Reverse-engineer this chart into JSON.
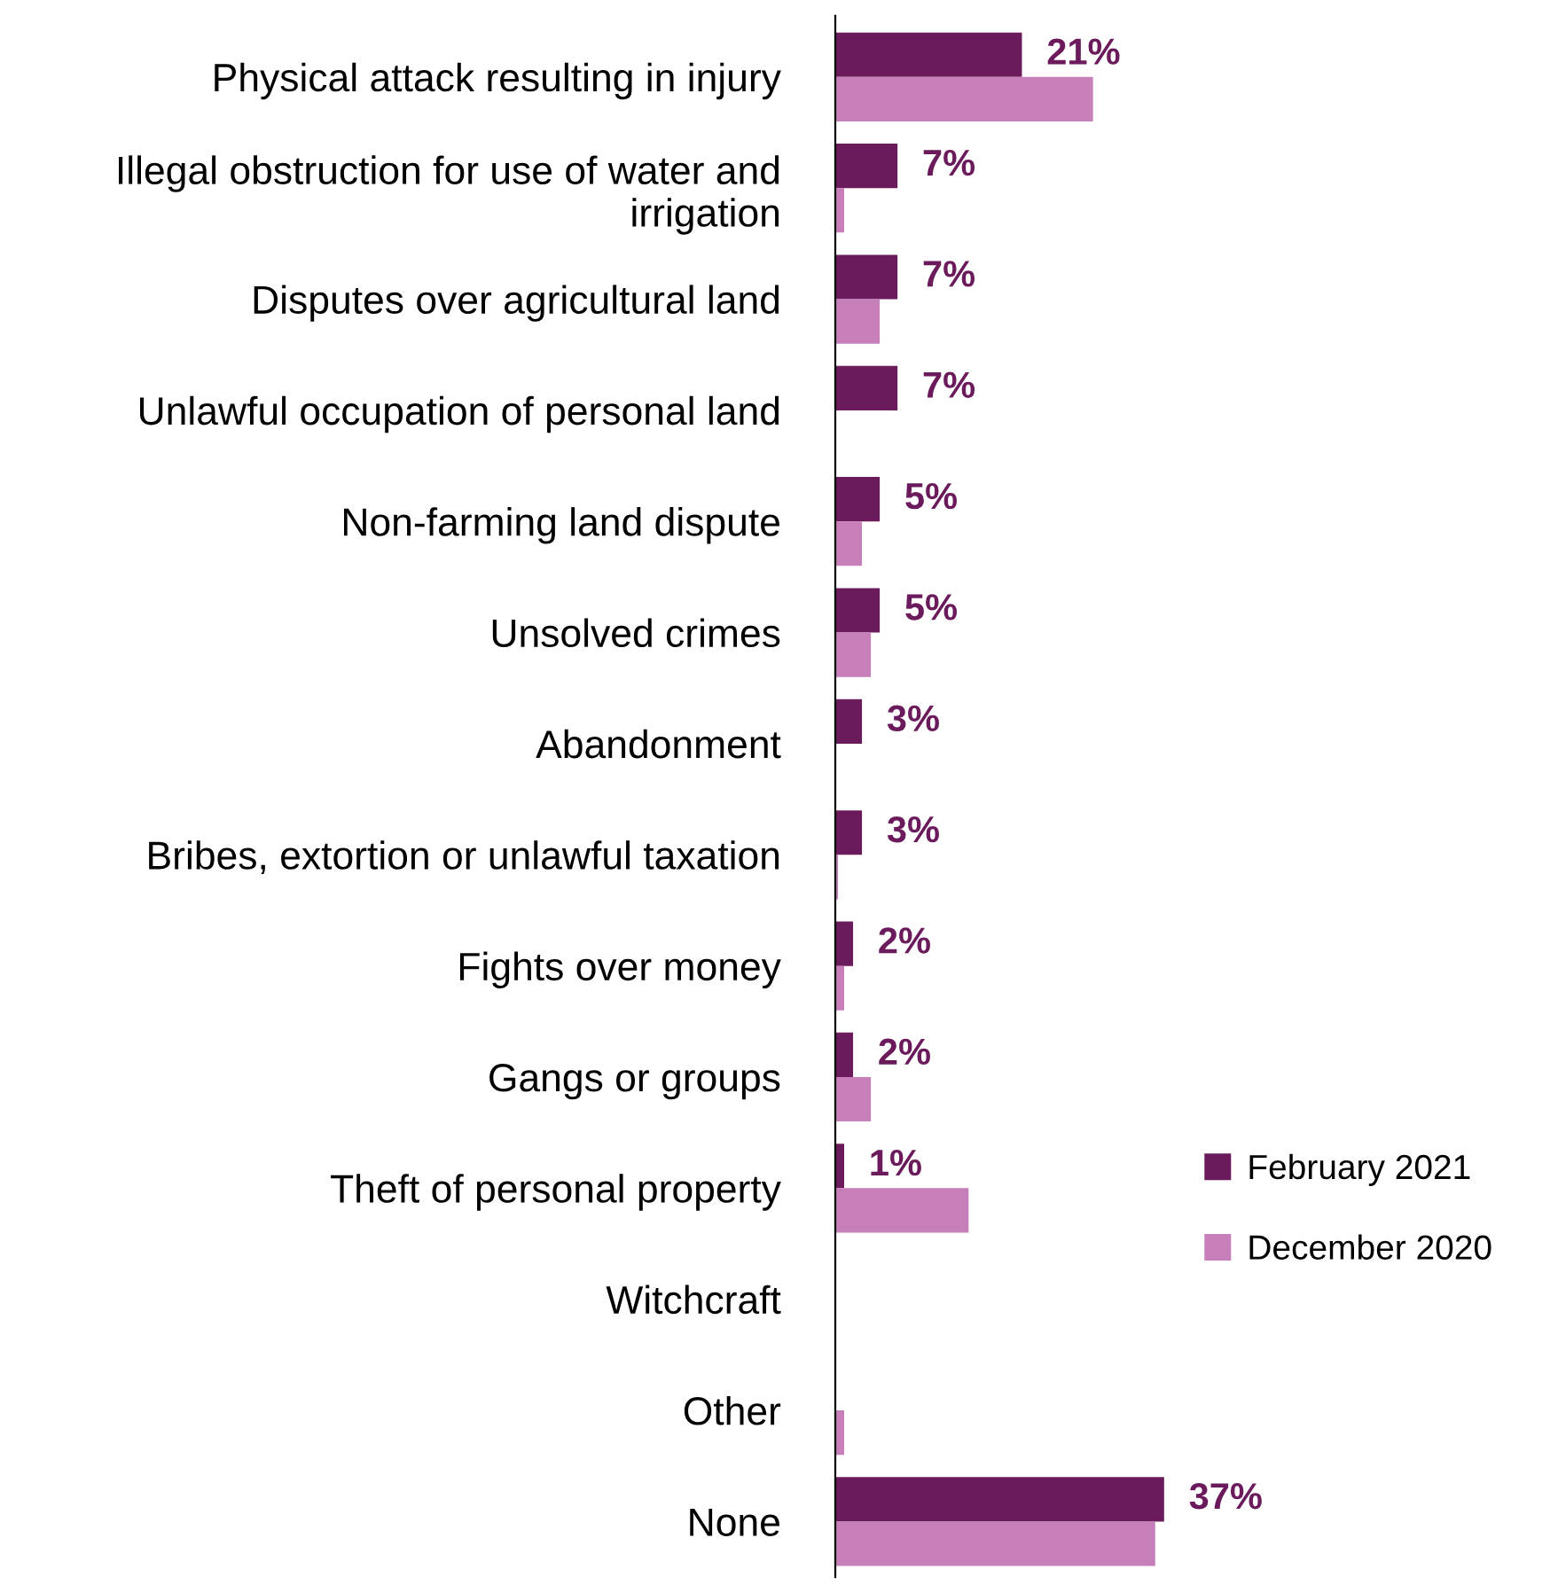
{
  "chart_data": {
    "type": "bar",
    "orientation": "horizontal",
    "legend": "right",
    "categories": [
      "Physical attack resulting in injury",
      "Illegal obstruction for use of water and\nirrigation",
      "Disputes over agricultural land",
      "Unlawful occupation of personal land",
      "Non-farming land dispute",
      "Unsolved crimes",
      "Abandonment",
      "Bribes, extortion or unlawful taxation",
      "Fights over money",
      "Gangs or groups",
      "Theft of personal property",
      "Witchcraft",
      "Other",
      "None"
    ],
    "series": [
      {
        "name": "February 2021",
        "color": "#6b1a5c",
        "values": [
          21,
          7,
          7,
          7,
          5,
          5,
          3,
          3,
          2,
          2,
          1,
          0,
          0,
          37
        ],
        "value_labels": [
          "21%",
          "7%",
          "7%",
          "7%",
          "5%",
          "5%",
          "3%",
          "3%",
          "2%",
          "2%",
          "1%",
          null,
          null,
          "37%"
        ]
      },
      {
        "name": "December 2020",
        "color": "#c77fba",
        "values": [
          29,
          1,
          5,
          0,
          3,
          4,
          0,
          0.3,
          1,
          4,
          15,
          0,
          1,
          36
        ]
      }
    ]
  }
}
